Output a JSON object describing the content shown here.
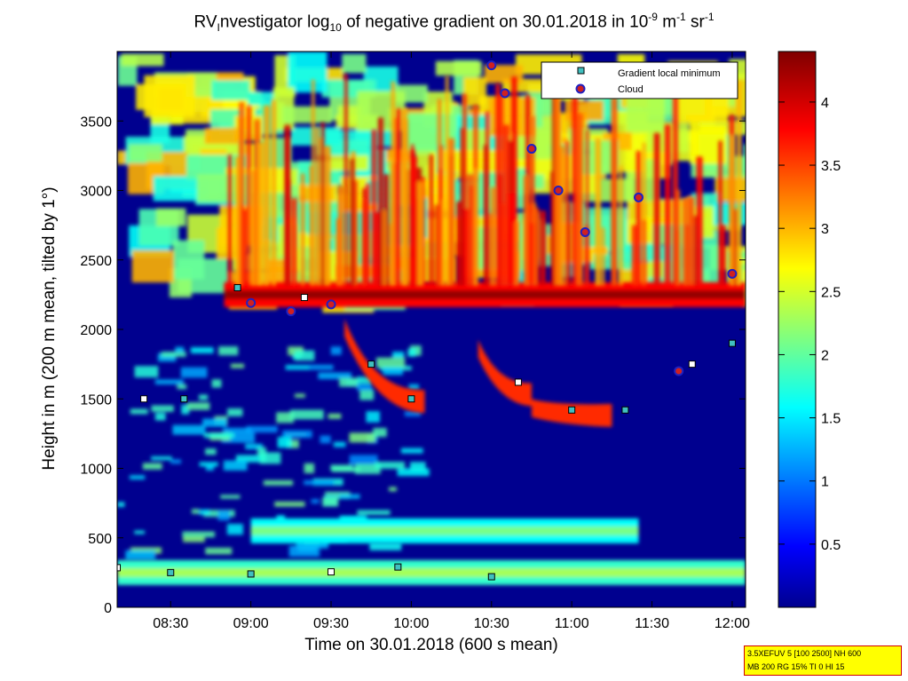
{
  "title": {
    "prefix": "RV",
    "sub": "I",
    "text": "nvestigator log",
    "base_sub": "10",
    "after": " of negative gradient on 30.01.2018 in 10",
    "exp1": "-9",
    "unit1": " m",
    "exp2": "-1",
    "unit2": " sr",
    "exp3": "-1"
  },
  "xlabel": "Time on 30.01.2018 (600 s mean)",
  "ylabel": "Height in m (200 m mean, tilted by 1°)",
  "infobox": {
    "line1": "3.5XEFUV 5 [100 2500] NH 600",
    "line2": "MB 200 RG 15% TI 0 HI 15"
  },
  "legend": {
    "items": [
      {
        "label": "Gradient local minimum",
        "marker": "square",
        "color": "#40c0c0"
      },
      {
        "label": "Cloud",
        "marker": "circle",
        "color": "#d02020",
        "edge": "#2020c0"
      }
    ]
  },
  "chart_data": {
    "type": "heatmap",
    "x_axis": {
      "range": [
        "08:10",
        "12:05"
      ],
      "ticks": [
        "08:30",
        "09:00",
        "09:30",
        "10:00",
        "10:30",
        "11:00",
        "11:30",
        "12:00"
      ]
    },
    "y_axis": {
      "range": [
        0,
        4000
      ],
      "ticks": [
        "0",
        "500",
        "1000",
        "1500",
        "2000",
        "2500",
        "3000",
        "3500"
      ]
    },
    "colorbar": {
      "range": [
        0,
        4.4
      ],
      "ticks": [
        "0.5",
        "1",
        "1.5",
        "2",
        "2.5",
        "3",
        "3.5",
        "4"
      ],
      "colormap": "jet"
    },
    "layers": [
      {
        "name": "surface layer",
        "from": "08:10",
        "to": "12:05",
        "height": 250,
        "value": 1.8
      },
      {
        "name": "aerosol layer",
        "from": "09:00",
        "to": "11:25",
        "height": 550,
        "value": 1.6
      },
      {
        "name": "boundary layer top",
        "from": "08:50",
        "to": "12:05",
        "height": 2250,
        "value": 3.8
      }
    ],
    "descending_layers": [
      {
        "from": "09:35",
        "to": "10:05",
        "height_from": 2000,
        "height_to": 1500,
        "value": 3.6
      },
      {
        "from": "10:25",
        "to": "10:45",
        "height_from": 1850,
        "height_to": 1550,
        "value": 3.6
      },
      {
        "from": "10:45",
        "to": "11:15",
        "height_from": 1420,
        "height_to": 1400,
        "value": 3.6
      }
    ],
    "gradient_minima": [
      {
        "time": "08:10",
        "height": 285
      },
      {
        "time": "08:30",
        "height": 250
      },
      {
        "time": "09:00",
        "height": 240
      },
      {
        "time": "09:30",
        "height": 255
      },
      {
        "time": "09:55",
        "height": 290
      },
      {
        "time": "10:30",
        "height": 220
      },
      {
        "time": "08:20",
        "height": 1500
      },
      {
        "time": "08:35",
        "height": 1500
      },
      {
        "time": "08:55",
        "height": 2300
      },
      {
        "time": "09:20",
        "height": 2230
      },
      {
        "time": "09:45",
        "height": 1750
      },
      {
        "time": "10:00",
        "height": 1500
      },
      {
        "time": "10:40",
        "height": 1620
      },
      {
        "time": "11:00",
        "height": 1420
      },
      {
        "time": "11:20",
        "height": 1420
      },
      {
        "time": "11:45",
        "height": 1750
      },
      {
        "time": "12:00",
        "height": 1900
      }
    ],
    "clouds": [
      {
        "time": "09:00",
        "height": 2190
      },
      {
        "time": "09:15",
        "height": 2130
      },
      {
        "time": "09:30",
        "height": 2180
      },
      {
        "time": "10:30",
        "height": 3900
      },
      {
        "time": "10:35",
        "height": 3700
      },
      {
        "time": "10:45",
        "height": 3300
      },
      {
        "time": "10:55",
        "height": 3000
      },
      {
        "time": "11:05",
        "height": 2700
      },
      {
        "time": "11:25",
        "height": 2950
      },
      {
        "time": "11:40",
        "height": 1700
      },
      {
        "time": "12:00",
        "height": 2400
      }
    ]
  }
}
